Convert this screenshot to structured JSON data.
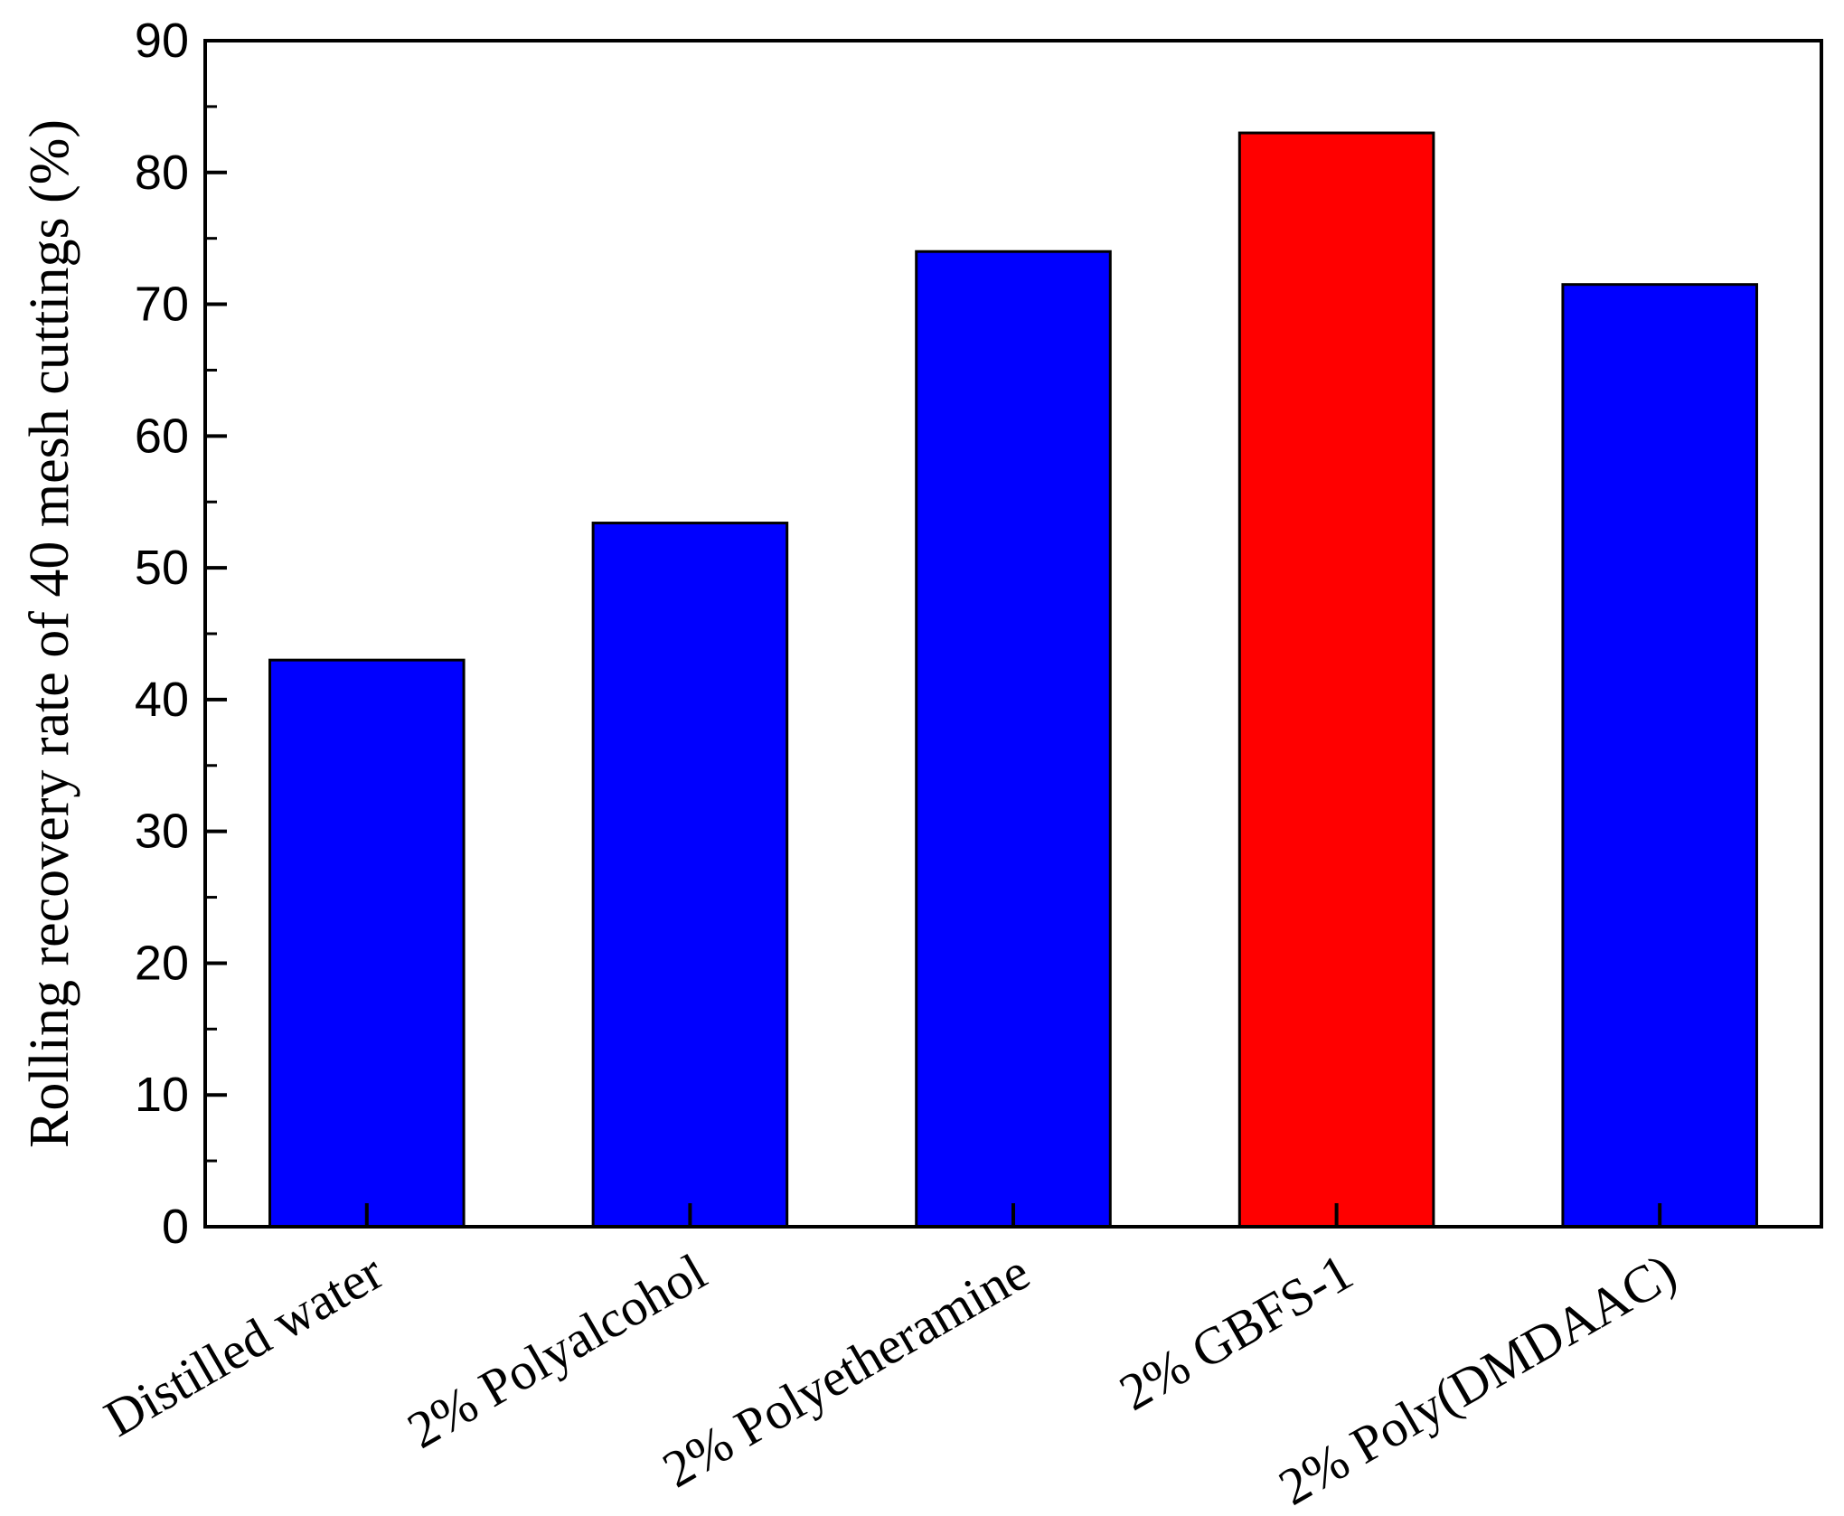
{
  "chart_data": {
    "type": "bar",
    "title": "",
    "xlabel": "",
    "ylabel": "Rolling recovery rate of 40 mesh cuttings (%)",
    "categories": [
      "Distilled water",
      "2% Polyalcohol",
      "2% Polyetheramine",
      "2% GBFS-1",
      "2% Poly(DMDAAC)"
    ],
    "values": [
      43.0,
      53.4,
      74.0,
      83.0,
      71.5
    ],
    "bar_colors": [
      "#0000ff",
      "#0000ff",
      "#0000ff",
      "#ff0000",
      "#0000ff"
    ],
    "edge_color": "#000000",
    "ylim": [
      0,
      90
    ],
    "yticks": [
      0,
      10,
      20,
      30,
      40,
      50,
      60,
      70,
      80,
      90
    ],
    "ytick_labels": [
      "0",
      "10",
      "20",
      "30",
      "40",
      "50",
      "60",
      "70",
      "80",
      "90"
    ],
    "grid": false,
    "legend": "none"
  }
}
